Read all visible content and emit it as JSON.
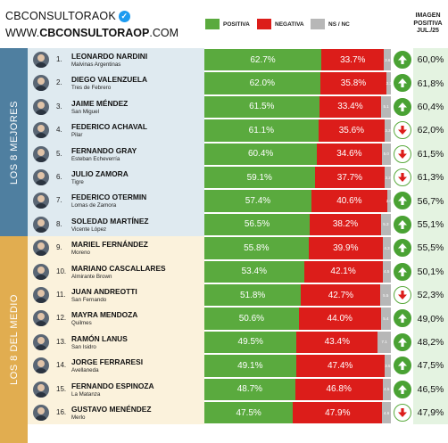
{
  "header": {
    "brand": "CBCONSULTORAOK",
    "site_prefix": "WWW.",
    "site_bold": "CBCONSULTORAOP",
    "site_suffix": ".COM",
    "legend": [
      {
        "label": "POSITIVA",
        "color": "#5aaa3e"
      },
      {
        "label": "NEGATIVA",
        "color": "#dc1d1a"
      },
      {
        "label": "NS / NC",
        "color": "#b7b7b7"
      }
    ],
    "image_col": [
      "IMAGEN",
      "POSITIVA",
      "JUL./25"
    ]
  },
  "sections": [
    {
      "label": "LOS 8 MEJORES",
      "color": "#4f7fa0"
    },
    {
      "label": "LOS 8 DEL MEDIO",
      "color": "#e1ad50"
    }
  ],
  "chart_data": {
    "type": "bar",
    "stacked": true,
    "series_names": [
      "POSITIVA",
      "NEGATIVA",
      "NS / NC"
    ],
    "rows": [
      {
        "rank": "1.",
        "name": "LEONARDO NARDINI",
        "muni": "Malvinas Argentinas",
        "pos": 62.7,
        "neg": 33.7,
        "ns": 3.6,
        "trend": "up",
        "image": "60,0%",
        "section": 0
      },
      {
        "rank": "2.",
        "name": "DIEGO VALENZUELA",
        "muni": "Tres de Febrero",
        "pos": 62.0,
        "neg": 35.8,
        "ns": 2.2,
        "trend": "up",
        "image": "61,8%",
        "section": 0
      },
      {
        "rank": "3.",
        "name": "JAIME MÉNDEZ",
        "muni": "San Miguel",
        "pos": 61.5,
        "neg": 33.4,
        "ns": 5.1,
        "trend": "up",
        "image": "60,4%",
        "section": 0
      },
      {
        "rank": "4.",
        "name": "FEDERICO ACHAVAL",
        "muni": "Pilar",
        "pos": 61.1,
        "neg": 35.6,
        "ns": 3.3,
        "trend": "down",
        "image": "62,0%",
        "section": 0
      },
      {
        "rank": "5.",
        "name": "FERNANDO GRAY",
        "muni": "Esteban Echeverría",
        "pos": 60.4,
        "neg": 34.6,
        "ns": 5.0,
        "trend": "down",
        "image": "61,5%",
        "section": 0
      },
      {
        "rank": "6.",
        "name": "JULIO ZAMORA",
        "muni": "Tigre",
        "pos": 59.1,
        "neg": 37.7,
        "ns": 3.2,
        "trend": "down",
        "image": "61,3%",
        "section": 0
      },
      {
        "rank": "7.",
        "name": "FEDERICO OTERMIN",
        "muni": "Lomas de Zamora",
        "pos": 57.4,
        "neg": 40.6,
        "ns": 2.0,
        "trend": "up",
        "image": "56,7%",
        "section": 0
      },
      {
        "rank": "8.",
        "name": "SOLEDAD MARTÍNEZ",
        "muni": "Vicente López",
        "pos": 56.5,
        "neg": 38.2,
        "ns": 5.3,
        "trend": "up",
        "image": "55,1%",
        "section": 0
      },
      {
        "rank": "9.",
        "name": "MARIEL FERNÁNDEZ",
        "muni": "Moreno",
        "pos": 55.8,
        "neg": 39.9,
        "ns": 4.3,
        "trend": "up",
        "image": "55,5%",
        "section": 1
      },
      {
        "rank": "10.",
        "name": "MARIANO CASCALLARES",
        "muni": "Almirante Brown",
        "pos": 53.4,
        "neg": 42.1,
        "ns": 4.5,
        "trend": "up",
        "image": "50,1%",
        "section": 1
      },
      {
        "rank": "11.",
        "name": "JUAN ANDREOTTI",
        "muni": "San Fernando",
        "pos": 51.8,
        "neg": 42.7,
        "ns": 5.5,
        "trend": "down",
        "image": "52,3%",
        "section": 1
      },
      {
        "rank": "12.",
        "name": "MAYRA MENDOZA",
        "muni": "Quilmes",
        "pos": 50.6,
        "neg": 44.0,
        "ns": 5.4,
        "trend": "up",
        "image": "49,0%",
        "section": 1
      },
      {
        "rank": "13.",
        "name": "RAMÓN LANUS",
        "muni": "San Isidro",
        "pos": 49.5,
        "neg": 43.4,
        "ns": 7.1,
        "trend": "up",
        "image": "48,2%",
        "section": 1
      },
      {
        "rank": "14.",
        "name": "JORGE FERRARESI",
        "muni": "Avellaneda",
        "pos": 49.1,
        "neg": 47.4,
        "ns": 3.5,
        "trend": "up",
        "image": "47,5%",
        "section": 1
      },
      {
        "rank": "15.",
        "name": "FERNANDO ESPINOZA",
        "muni": "La Matanza",
        "pos": 48.7,
        "neg": 46.8,
        "ns": 4.5,
        "trend": "up",
        "image": "46,5%",
        "section": 1
      },
      {
        "rank": "16.",
        "name": "GUSTAVO MENÉNDEZ",
        "muni": "Merlo",
        "pos": 47.5,
        "neg": 47.9,
        "ns": 4.6,
        "trend": "down",
        "image": "47,9%",
        "section": 1
      }
    ]
  }
}
